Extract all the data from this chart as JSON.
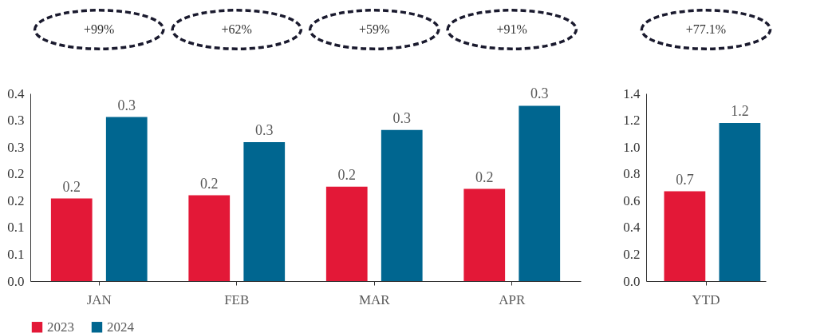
{
  "chart_data": [
    {
      "type": "bar",
      "categories": [
        "JAN",
        "FEB",
        "MAR",
        "APR"
      ],
      "series": [
        {
          "name": "2023",
          "color": "#e31837",
          "values": [
            0.154,
            0.16,
            0.176,
            0.172
          ],
          "value_labels": [
            "0.2",
            "0.2",
            "0.2",
            "0.2"
          ]
        },
        {
          "name": "2024",
          "color": "#006690",
          "values": [
            0.306,
            0.259,
            0.282,
            0.327
          ],
          "value_labels": [
            "0.3",
            "0.3",
            "0.3",
            "0.3"
          ]
        }
      ],
      "ylim": [
        0,
        0.35
      ],
      "yticks": [
        {
          "value": 0,
          "label": "0.0"
        },
        {
          "value": 0.05,
          "label": "0.1"
        },
        {
          "value": 0.1,
          "label": "0.1"
        },
        {
          "value": 0.15,
          "label": "0.2"
        },
        {
          "value": 0.2,
          "label": "0.2"
        },
        {
          "value": 0.25,
          "label": "0.3"
        },
        {
          "value": 0.3,
          "label": "0.3"
        },
        {
          "value": 0.35,
          "label": "0.4"
        }
      ],
      "annotations": [
        "+99%",
        "+62%",
        "+59%",
        "+91%"
      ],
      "legend": "bottom",
      "grid": false
    },
    {
      "type": "bar",
      "categories": [
        "YTD"
      ],
      "series": [
        {
          "name": "2023",
          "color": "#e31837",
          "values": [
            0.67
          ],
          "value_labels": [
            "0.7"
          ]
        },
        {
          "name": "2024",
          "color": "#006690",
          "values": [
            1.18
          ],
          "value_labels": [
            "1.2"
          ]
        }
      ],
      "ylim": [
        0,
        1.4
      ],
      "yticks": [
        {
          "value": 0,
          "label": "0.0"
        },
        {
          "value": 0.2,
          "label": "0.2"
        },
        {
          "value": 0.4,
          "label": "0.4"
        },
        {
          "value": 0.6,
          "label": "0.6"
        },
        {
          "value": 0.8,
          "label": "0.8"
        },
        {
          "value": 1.0,
          "label": "1.0"
        },
        {
          "value": 1.2,
          "label": "1.2"
        },
        {
          "value": 1.4,
          "label": "1.4"
        }
      ],
      "annotations": [
        "+77.1%"
      ],
      "legend": false,
      "grid": false
    }
  ]
}
